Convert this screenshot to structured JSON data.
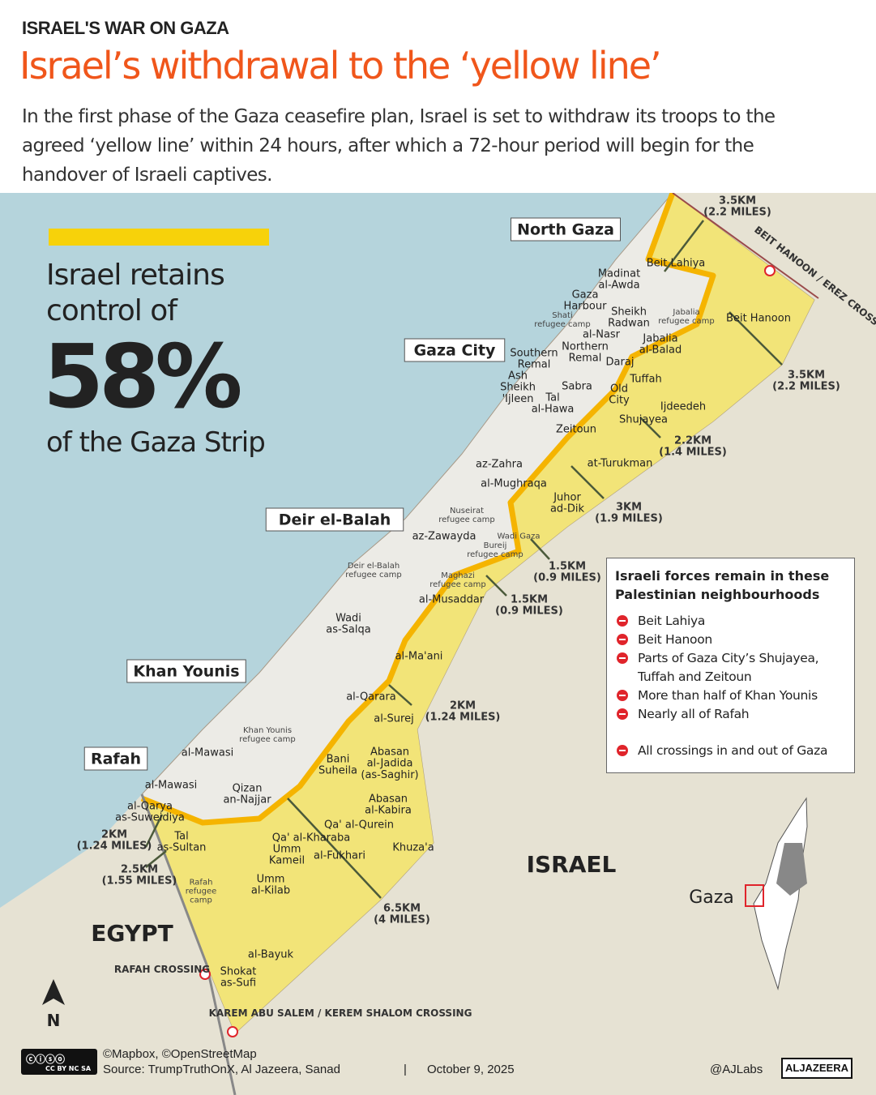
{
  "header": {
    "kicker": "ISRAEL'S WAR ON GAZA",
    "title": "Israel’s withdrawal to the ‘yellow line’",
    "subtitle": "In the first phase of the Gaza ceasefire plan, Israel is set to withdraw its troops to the agreed ‘yellow line’ within 24 hours, after which a 72-hour period will begin for the handover of Israeli captives."
  },
  "stat": {
    "line1": "Israel retains",
    "line2": "control of",
    "value": "58%",
    "line3": "of the Gaza Strip",
    "percent_controlled": 58
  },
  "colors": {
    "title": "#f0561b",
    "yellow_zone": "#f3e36c",
    "yellow_line": "#f5b400",
    "sea": "#b5d4dc",
    "land": "#e6e2d3",
    "marker": "#e0242b"
  },
  "map": {
    "regions": [
      "North Gaza",
      "Gaza City",
      "Deir el-Balah",
      "Khan Younis",
      "Rafah"
    ],
    "countries": [
      "ISRAEL",
      "EGYPT"
    ],
    "crossings": [
      "BEIT HANOON / EREZ CROSSING",
      "RAFAH CROSSING",
      "KAREM ABU SALEM / KEREM SHALOM CROSSING"
    ],
    "places": [
      "Beit Lahiya",
      "Madinat\nal-Awda",
      "Gaza\nHarbour",
      "Shati\nrefugee camp",
      "Sheikh\nRadwan",
      "Jabalia\nrefugee camp",
      "Beit Hanoon",
      "al-Nasr",
      "Jabalia\nal-Balad",
      "Northern\nRemal",
      "Southern\nRemal",
      "Daraj",
      "Tuffah",
      "Ash\nSheikh\n'Ijleen",
      "Sabra",
      "Old\nCity",
      "Tal\nal-Hawa",
      "Ijdeedeh",
      "Shujayea",
      "Zeitoun",
      "az-Zahra",
      "at-Turukman",
      "al-Mughraqa",
      "Juhor\nad-Dik",
      "Nuseirat\nrefugee camp",
      "az-Zawayda",
      "Wadi Gaza",
      "Bureij\nrefugee camp",
      "Deir el-Balah\nrefugee camp",
      "Maghazi\nrefugee camp",
      "al-Musaddar",
      "Wadi\nas-Salqa",
      "al-Ma'ani",
      "al-Qarara",
      "al-Surej",
      "Khan Younis\nrefugee camp",
      "al-Mawasi",
      "Abasan\nal-Jadida\n(as-Saghir)",
      "Bani\nSuheila",
      "al-Mawasi",
      "Qizan\nan-Najjar",
      "al-Qarya\nas-Suweidiya",
      "Abasan\nal-Kabira",
      "Qa' al-Qurein",
      "Tal\nas-Sultan",
      "Qa' al-Kharaba",
      "Khuza'a",
      "Umm\nKameil",
      "al-Fukhari",
      "Umm\nal-Kilab",
      "Rafah\nrefugee\ncamp",
      "al-Bayuk",
      "Shokat\nas-Sufi"
    ],
    "distances": [
      "3.5KM\n(2.2 MILES)",
      "3.5KM\n(2.2 MILES)",
      "2.2KM\n(1.4 MILES)",
      "3KM\n(1.9 MILES)",
      "1.5KM\n(0.9 MILES)",
      "1.5KM\n(0.9 MILES)",
      "2KM\n(1.24 MILES)",
      "2KM\n(1.24 MILES)",
      "2.5KM\n(1.55 MILES)",
      "6.5KM\n(4 MILES)"
    ],
    "north": "N",
    "inset_label": "Gaza"
  },
  "legend": {
    "title": "Israeli forces remain in these Palestinian neighbourhoods",
    "items": [
      "Beit Lahiya",
      "Beit Hanoon",
      "Parts of Gaza City’s Shujayea, Tuffah and Zeitoun",
      "More than half of Khan Younis",
      "Nearly all of Rafah"
    ],
    "extra": "All crossings in and out of Gaza"
  },
  "footer": {
    "license": "CC BY NC SA",
    "credits": "©Mapbox, ©OpenStreetMap",
    "source": "Source: TrumpTruthOnX, Al Jazeera, Sanad",
    "separator": "|",
    "date": "October 9, 2025",
    "handle": "@AJLabs",
    "brand": "ALJAZEERA"
  }
}
